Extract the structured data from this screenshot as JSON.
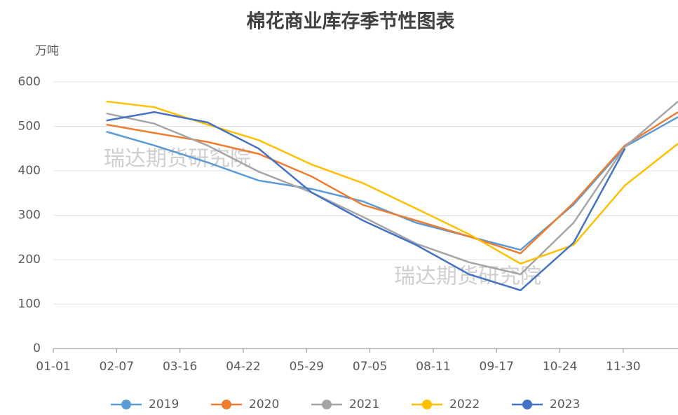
{
  "chart_data": {
    "type": "line",
    "title": "棉花商业库存季节性图表",
    "y_label": "万吨",
    "watermarks": [
      "瑞达期货研究院",
      "瑞达期货研究院"
    ],
    "x": [
      31,
      59,
      90,
      120,
      151,
      181,
      212,
      243,
      273,
      304,
      334,
      365
    ],
    "xlim": [
      0,
      365
    ],
    "xticks": [
      {
        "value": 0,
        "label": "01-01"
      },
      {
        "value": 37,
        "label": "02-07"
      },
      {
        "value": 74,
        "label": "03-16"
      },
      {
        "value": 111,
        "label": "04-22"
      },
      {
        "value": 148,
        "label": "05-29"
      },
      {
        "value": 185,
        "label": "07-05"
      },
      {
        "value": 222,
        "label": "08-11"
      },
      {
        "value": 259,
        "label": "09-17"
      },
      {
        "value": 296,
        "label": "10-24"
      },
      {
        "value": 333,
        "label": "11-30"
      }
    ],
    "ylim": [
      0,
      600
    ],
    "yticks": [
      0,
      100,
      200,
      300,
      400,
      500,
      600
    ],
    "grid": true,
    "legend": "bottom",
    "series": [
      {
        "name": "2019",
        "color": "#5b9bd5",
        "values": [
          488,
          457,
          419,
          378,
          359,
          331,
          283,
          252,
          222,
          324,
          454,
          521
        ]
      },
      {
        "name": "2020",
        "color": "#ed7d31",
        "values": [
          504,
          485,
          465,
          438,
          387,
          323,
          288,
          252,
          214,
          328,
          457,
          532
        ]
      },
      {
        "name": "2021",
        "color": "#a5a5a5",
        "values": [
          529,
          506,
          457,
          398,
          351,
          296,
          236,
          194,
          167,
          283,
          454,
          556
        ]
      },
      {
        "name": "2022",
        "color": "#ffc000",
        "values": [
          556,
          543,
          504,
          469,
          414,
          372,
          315,
          257,
          191,
          233,
          367,
          461
        ]
      },
      {
        "name": "2023",
        "color": "#4472c4",
        "values": [
          513,
          532,
          509,
          450,
          351,
          288,
          233,
          167,
          131,
          238,
          450,
          null
        ]
      }
    ]
  }
}
